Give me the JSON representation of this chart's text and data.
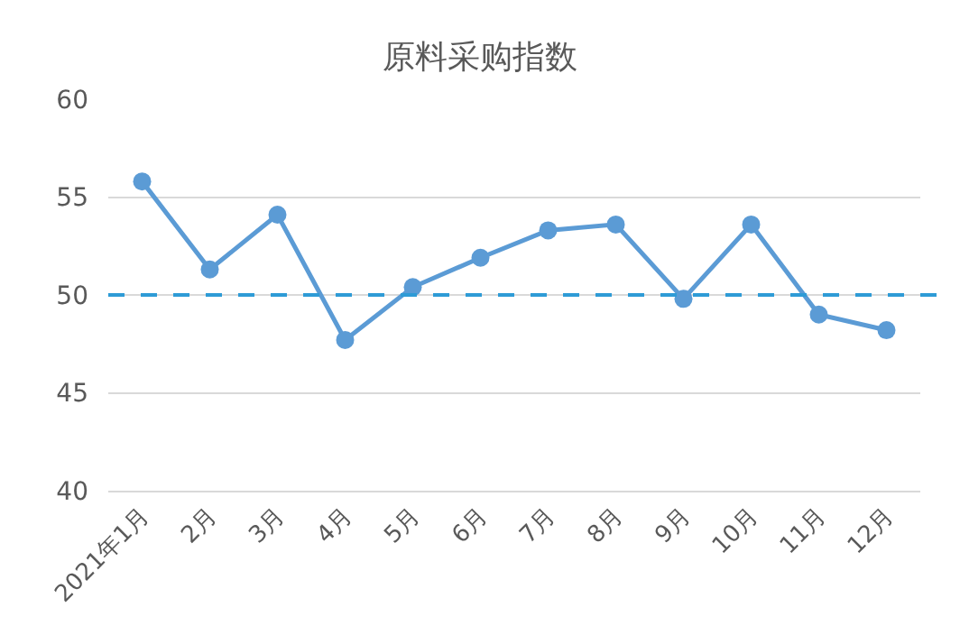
{
  "chart_data": {
    "type": "line",
    "title": "原料采购指数",
    "categories": [
      "2021年1月",
      "2月",
      "3月",
      "4月",
      "5月",
      "6月",
      "7月",
      "8月",
      "9月",
      "10月",
      "11月",
      "12月"
    ],
    "series": [
      {
        "color": "#5b9bd5",
        "values": [
          55.8,
          51.3,
          54.1,
          47.7,
          50.4,
          51.9,
          53.3,
          53.6,
          49.8,
          53.6,
          49.0,
          48.2
        ]
      }
    ],
    "ylim": [
      40,
      60
    ],
    "yticks": [
      40,
      45,
      50,
      55,
      60
    ],
    "grid": "y",
    "marker": "circle",
    "line_style": "solid",
    "ref_lines": [
      {
        "axis": "y",
        "value": 50,
        "color": "#2e9bd6",
        "line_style": "dashed"
      }
    ]
  }
}
